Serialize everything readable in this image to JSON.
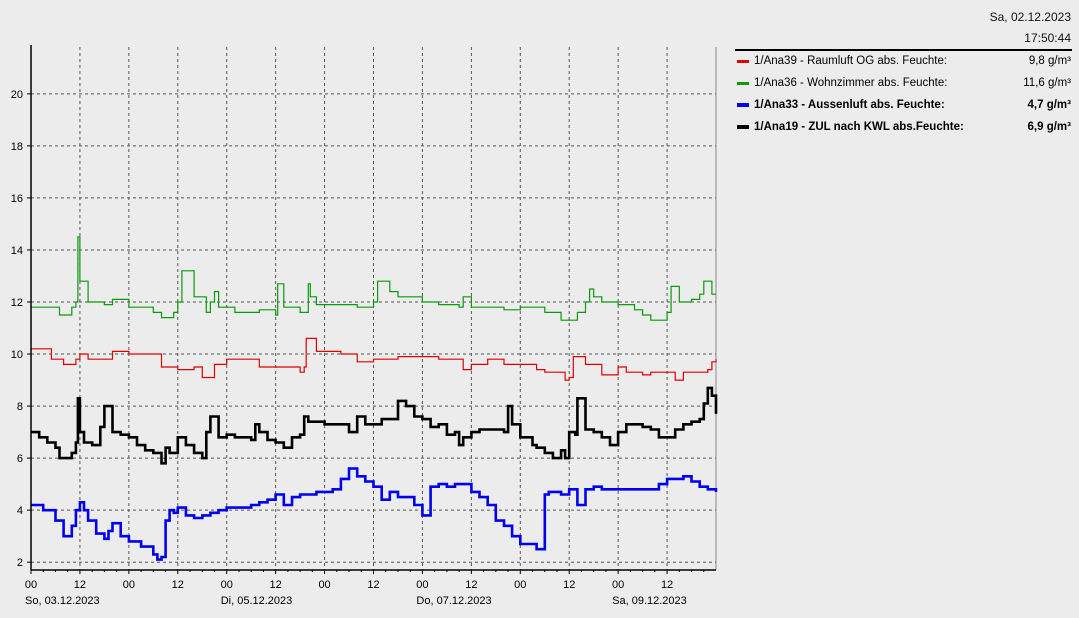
{
  "header": {
    "date": "Sa, 02.12.2023",
    "time": "17:50:44"
  },
  "legend": [
    {
      "label": "1/Ana39 - Raumluft OG abs. Feuchte:",
      "value": "9,8 g/m³",
      "color": "#e00000",
      "bold": false
    },
    {
      "label": "1/Ana36 - Wohnzimmer abs. Feuchte:",
      "value": "11,6 g/m³",
      "color": "#0a9a0a",
      "bold": false
    },
    {
      "label": "1/Ana33 - Aussenluft abs. Feuchte:",
      "value": "4,7 g/m³",
      "color": "#0000ee",
      "bold": true
    },
    {
      "label": "1/Ana19 - ZUL nach KWL abs.Feuchte:",
      "value": "6,9 g/m³",
      "color": "#000000",
      "bold": true
    }
  ],
  "chart_data": {
    "type": "line",
    "xlim": [
      0,
      168
    ],
    "ylim": [
      1.7,
      21.8
    ],
    "y_ticks": [
      2,
      4,
      6,
      8,
      10,
      12,
      14,
      16,
      18,
      20
    ],
    "x_ticks": [
      {
        "hour": 0,
        "label": "00"
      },
      {
        "hour": 12,
        "label": "12"
      },
      {
        "hour": 24,
        "label": "00"
      },
      {
        "hour": 36,
        "label": "12"
      },
      {
        "hour": 48,
        "label": "00"
      },
      {
        "hour": 60,
        "label": "12"
      },
      {
        "hour": 72,
        "label": "00"
      },
      {
        "hour": 84,
        "label": "12"
      },
      {
        "hour": 96,
        "label": "00"
      },
      {
        "hour": 108,
        "label": "12"
      },
      {
        "hour": 120,
        "label": "00"
      },
      {
        "hour": 132,
        "label": "12"
      },
      {
        "hour": 144,
        "label": "00"
      },
      {
        "hour": 156,
        "label": "12"
      }
    ],
    "day_labels": [
      {
        "hour": 0,
        "label": "So, 03.12.2023"
      },
      {
        "hour": 48,
        "label": "Di, 05.12.2023"
      },
      {
        "hour": 96,
        "label": "Do, 07.12.2023"
      },
      {
        "hour": 144,
        "label": "Sa, 09.12.2023"
      }
    ],
    "grid": true,
    "series": [
      {
        "name": "1/Ana36 - Wohnzimmer abs. Feuchte:",
        "color": "#0a9a0a",
        "width": 1.2,
        "x": [
          0,
          6,
          7,
          10,
          11,
          11.5,
          12,
          14,
          18,
          20,
          24,
          30,
          32,
          35,
          36,
          37,
          40,
          43,
          44,
          45,
          46,
          50,
          56,
          60,
          60.5,
          62,
          66,
          67,
          68,
          68.5,
          70,
          76,
          80,
          84,
          85,
          88,
          90,
          92,
          96,
          100,
          105,
          106,
          108,
          110,
          116,
          120,
          126,
          130,
          134,
          136,
          137,
          138,
          140,
          144,
          148,
          150,
          152,
          156,
          157,
          159,
          162,
          164,
          165,
          167,
          168
        ],
        "y": [
          11.8,
          11.8,
          11.5,
          11.8,
          12.0,
          14.5,
          12.8,
          12.0,
          11.9,
          12.1,
          11.8,
          11.6,
          11.4,
          11.6,
          12.0,
          13.2,
          12.2,
          11.6,
          12.0,
          12.4,
          11.8,
          11.6,
          11.7,
          11.5,
          12.7,
          11.8,
          11.6,
          11.6,
          12.7,
          12.2,
          11.9,
          11.9,
          11.8,
          12.0,
          12.8,
          12.4,
          12.2,
          12.2,
          12.0,
          11.9,
          11.8,
          12.2,
          11.8,
          11.8,
          11.7,
          11.8,
          11.6,
          11.3,
          11.6,
          12.0,
          12.5,
          12.2,
          12.0,
          11.9,
          11.7,
          11.5,
          11.3,
          11.6,
          12.6,
          12.0,
          12.1,
          12.3,
          12.8,
          12.3,
          12.3
        ]
      },
      {
        "name": "1/Ana39 - Raumluft OG abs. Feuchte:",
        "color": "#e00000",
        "width": 1.2,
        "x": [
          0,
          2,
          5,
          8,
          11,
          12,
          14,
          20,
          24,
          30,
          32,
          36,
          40,
          42,
          45,
          48,
          52,
          56,
          60,
          66,
          67,
          67.5,
          70,
          76,
          80,
          84,
          90,
          96,
          100,
          106,
          108,
          112,
          116,
          120,
          124,
          126,
          131,
          132,
          133,
          136,
          140,
          144,
          146,
          148,
          150,
          152,
          158,
          160,
          166,
          167,
          168
        ],
        "y": [
          10.2,
          10.2,
          9.8,
          9.6,
          9.8,
          10.0,
          9.8,
          10.1,
          10.0,
          10.0,
          9.5,
          9.4,
          9.5,
          9.1,
          9.6,
          9.8,
          9.8,
          9.5,
          9.5,
          9.3,
          9.5,
          10.6,
          10.1,
          10.0,
          9.7,
          9.8,
          9.9,
          9.9,
          9.8,
          9.4,
          9.6,
          9.8,
          9.6,
          9.6,
          9.4,
          9.3,
          9.0,
          9.1,
          9.9,
          9.6,
          9.2,
          9.5,
          9.3,
          9.3,
          9.2,
          9.3,
          9.0,
          9.3,
          9.4,
          9.7,
          9.8
        ]
      },
      {
        "name": "1/Ana19 - ZUL nach KWL abs.Feuchte:",
        "color": "#000000",
        "width": 2.6,
        "x": [
          0,
          2,
          4,
          6,
          7,
          10,
          11,
          11.5,
          12,
          13,
          15,
          17,
          18,
          20,
          22,
          24,
          26,
          28,
          30,
          32,
          33,
          34,
          36,
          38,
          40,
          42,
          43,
          44,
          46,
          48,
          50,
          54,
          55,
          56,
          58,
          60,
          62,
          64,
          66,
          67,
          68,
          70,
          72,
          76,
          78,
          80,
          82,
          84,
          86,
          88,
          90,
          92,
          94,
          96,
          98,
          100,
          102,
          104,
          105,
          106,
          108,
          110,
          112,
          116,
          117,
          118,
          120,
          123,
          124,
          126,
          128,
          130,
          131,
          132,
          133.5,
          134,
          136,
          138,
          140,
          142,
          144,
          146,
          148,
          150,
          152,
          154,
          156,
          158,
          160,
          162,
          164,
          165,
          166,
          167,
          168
        ],
        "y": [
          7.0,
          6.8,
          6.6,
          6.4,
          6.0,
          6.2,
          6.6,
          8.3,
          7.0,
          6.6,
          6.5,
          7.2,
          8.0,
          7.0,
          6.9,
          6.8,
          6.5,
          6.3,
          6.2,
          5.8,
          6.4,
          6.2,
          6.8,
          6.5,
          6.2,
          6.0,
          7.0,
          7.6,
          6.8,
          6.9,
          6.8,
          6.7,
          7.3,
          7.0,
          6.7,
          6.6,
          6.4,
          6.8,
          6.9,
          7.6,
          7.4,
          7.4,
          7.3,
          7.3,
          7.0,
          7.6,
          7.3,
          7.3,
          7.5,
          7.5,
          8.2,
          8.0,
          7.6,
          7.5,
          7.2,
          7.3,
          6.9,
          7.0,
          6.5,
          6.8,
          7.0,
          7.1,
          7.1,
          7.0,
          8.0,
          7.3,
          6.8,
          6.5,
          6.4,
          6.2,
          6.0,
          6.3,
          6.0,
          7.0,
          6.9,
          8.3,
          7.1,
          7.0,
          6.8,
          6.5,
          7.0,
          7.3,
          7.3,
          7.2,
          7.1,
          6.8,
          6.8,
          7.1,
          7.3,
          7.4,
          7.5,
          8.1,
          8.7,
          8.4,
          7.7
        ]
      },
      {
        "name": "1/Ana33 - Aussenluft abs. Feuchte:",
        "color": "#0000ee",
        "width": 2.6,
        "x": [
          0,
          3,
          6,
          8,
          10,
          11,
          12,
          13,
          14,
          16,
          18,
          19,
          20,
          22,
          24,
          27,
          30,
          31,
          32,
          33,
          34,
          35,
          36,
          38,
          40,
          42,
          44,
          46,
          48,
          52,
          54,
          56,
          58,
          60,
          62,
          64,
          66,
          70,
          74,
          76,
          78,
          80,
          82,
          84,
          86,
          88,
          90,
          92,
          94,
          96,
          98,
          100,
          102,
          104,
          106,
          108,
          110,
          112,
          114,
          116,
          118,
          120,
          124,
          126,
          127,
          128,
          130,
          132,
          134,
          136,
          138,
          140,
          144,
          148,
          152,
          154,
          156,
          158,
          160,
          162,
          164,
          166,
          168
        ],
        "y": [
          4.2,
          4.0,
          3.6,
          3.0,
          3.4,
          4.0,
          4.3,
          4.0,
          3.6,
          3.1,
          2.9,
          3.2,
          3.5,
          3.0,
          2.8,
          2.6,
          2.3,
          2.1,
          2.2,
          3.6,
          4.0,
          3.9,
          4.1,
          3.8,
          3.7,
          3.8,
          3.9,
          4.0,
          4.1,
          4.1,
          4.2,
          4.3,
          4.4,
          4.6,
          4.2,
          4.5,
          4.6,
          4.7,
          4.8,
          5.2,
          5.6,
          5.3,
          5.1,
          4.9,
          4.4,
          4.7,
          4.5,
          4.5,
          4.2,
          3.8,
          4.9,
          5.0,
          4.9,
          5.0,
          5.0,
          4.7,
          4.5,
          4.2,
          3.6,
          3.4,
          3.0,
          2.7,
          2.5,
          4.6,
          4.7,
          4.7,
          4.6,
          4.8,
          4.2,
          4.8,
          4.9,
          4.8,
          4.8,
          4.8,
          4.8,
          5.0,
          5.2,
          5.2,
          5.3,
          5.1,
          4.9,
          4.8,
          4.7
        ]
      }
    ]
  }
}
